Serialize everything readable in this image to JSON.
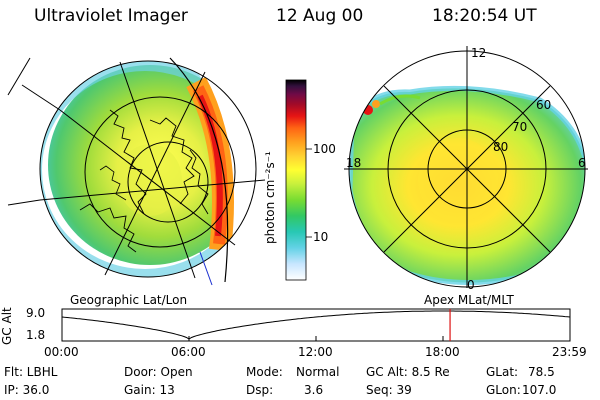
{
  "header": {
    "instrument": "Ultraviolet Imager",
    "date": "12 Aug 00",
    "time": "18:20:54 UT"
  },
  "left_panel": {
    "label": "Geographic Lat/Lon"
  },
  "right_panel": {
    "label": "Apex MLat/MLT",
    "mlt_labels": [
      "12",
      "6",
      "0",
      "18"
    ],
    "mlat_labels": [
      "60",
      "70",
      "80"
    ]
  },
  "colorbar": {
    "unit_label": "photon cm⁻²s⁻¹",
    "tick_labels": [
      "100",
      "10"
    ],
    "tick_values": [
      100,
      10
    ],
    "scale": "log",
    "colors": [
      "#ffffff",
      "#c8e6ff",
      "#64d2e6",
      "#28c8b4",
      "#32c864",
      "#78dc32",
      "#c8f03c",
      "#ffff32",
      "#ffd232",
      "#ffa01e",
      "#ff6414",
      "#e61414",
      "#a00a28",
      "#6e0a46",
      "#32103c",
      "#000000"
    ]
  },
  "altitude_plot": {
    "axis_label": "GC Alt",
    "y_labels": [
      "9.0",
      "1.8"
    ],
    "x_labels": [
      "00:00",
      "06:00",
      "12:00",
      "18:00",
      "23:59"
    ],
    "marker_time": "18:20",
    "marker_color": "#dd1111"
  },
  "info": {
    "row1": {
      "filter": "Flt: LBHL",
      "door": "Door: Open",
      "mode_label": "Mode:",
      "mode_value": "Normal",
      "gc_alt": "GC Alt: 8.5 Re",
      "glat_label": "GLat:",
      "glat_value": "78.5"
    },
    "row2": {
      "ip": "IP: 36.0",
      "gain": "Gain: 13",
      "dsp_label": "Dsp:",
      "dsp_value": "3.6",
      "seq": "Seq: 39",
      "glon_label": "GLon:",
      "glon_value": "107.0"
    }
  }
}
